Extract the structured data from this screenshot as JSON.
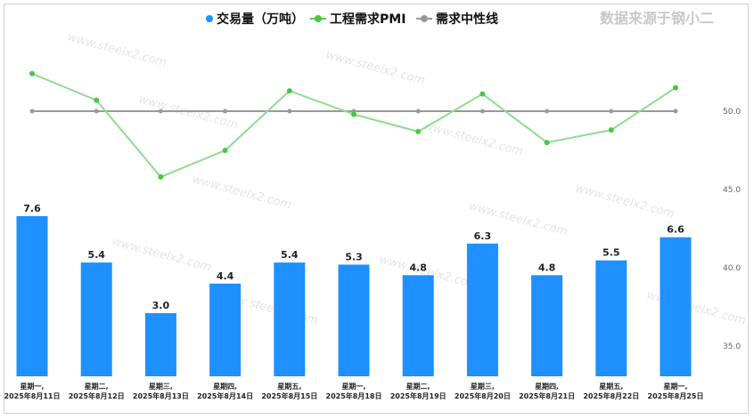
{
  "source_note": "数据来源于钢小二",
  "watermark": "www.steelx2.com",
  "colors": {
    "bar": "#1e90ff",
    "pmi": "#8fdc8f",
    "pmi_dot": "#4cc44c",
    "neutral": "#999999"
  },
  "chart_data": {
    "type": "bar",
    "categories": [
      [
        "星期一,",
        "2025年8月11日"
      ],
      [
        "星期二,",
        "2025年8月12日"
      ],
      [
        "星期三,",
        "2025年8月13日"
      ],
      [
        "星期四,",
        "2025年8月14日"
      ],
      [
        "星期五,",
        "2025年8月15日"
      ],
      [
        "星期一,",
        "2025年8月18日"
      ],
      [
        "星期二,",
        "2025年8月19日"
      ],
      [
        "星期三,",
        "2025年8月20日"
      ],
      [
        "星期四,",
        "2025年8月21日"
      ],
      [
        "星期五,",
        "2025年8月22日"
      ],
      [
        "星期一,",
        "2025年8月25日"
      ]
    ],
    "series": [
      {
        "name": "交易量（万吨）",
        "type": "bar",
        "values": [
          7.6,
          5.4,
          3.0,
          4.4,
          5.4,
          5.3,
          4.8,
          6.3,
          4.8,
          5.5,
          6.6
        ],
        "labels": [
          "7.6",
          "5.4",
          "3.0",
          "4.4",
          "5.4",
          "5.3",
          "4.8",
          "6.3",
          "4.8",
          "5.5",
          "6.6"
        ]
      },
      {
        "name": "工程需求PMI",
        "type": "line",
        "values": [
          52.4,
          50.7,
          45.8,
          47.5,
          51.3,
          49.8,
          48.7,
          51.1,
          48.0,
          48.8,
          51.5
        ]
      },
      {
        "name": "需求中性线",
        "type": "line",
        "values": [
          50,
          50,
          50,
          50,
          50,
          50,
          50,
          50,
          50,
          50,
          50
        ]
      }
    ],
    "y_right": {
      "ticks": [
        "50.0",
        "45.0",
        "40.0",
        "35.0"
      ],
      "tick_values": [
        50,
        45,
        40,
        35
      ],
      "range": [
        32.5,
        55
      ]
    },
    "legend_position": "top-center",
    "grid": false
  }
}
